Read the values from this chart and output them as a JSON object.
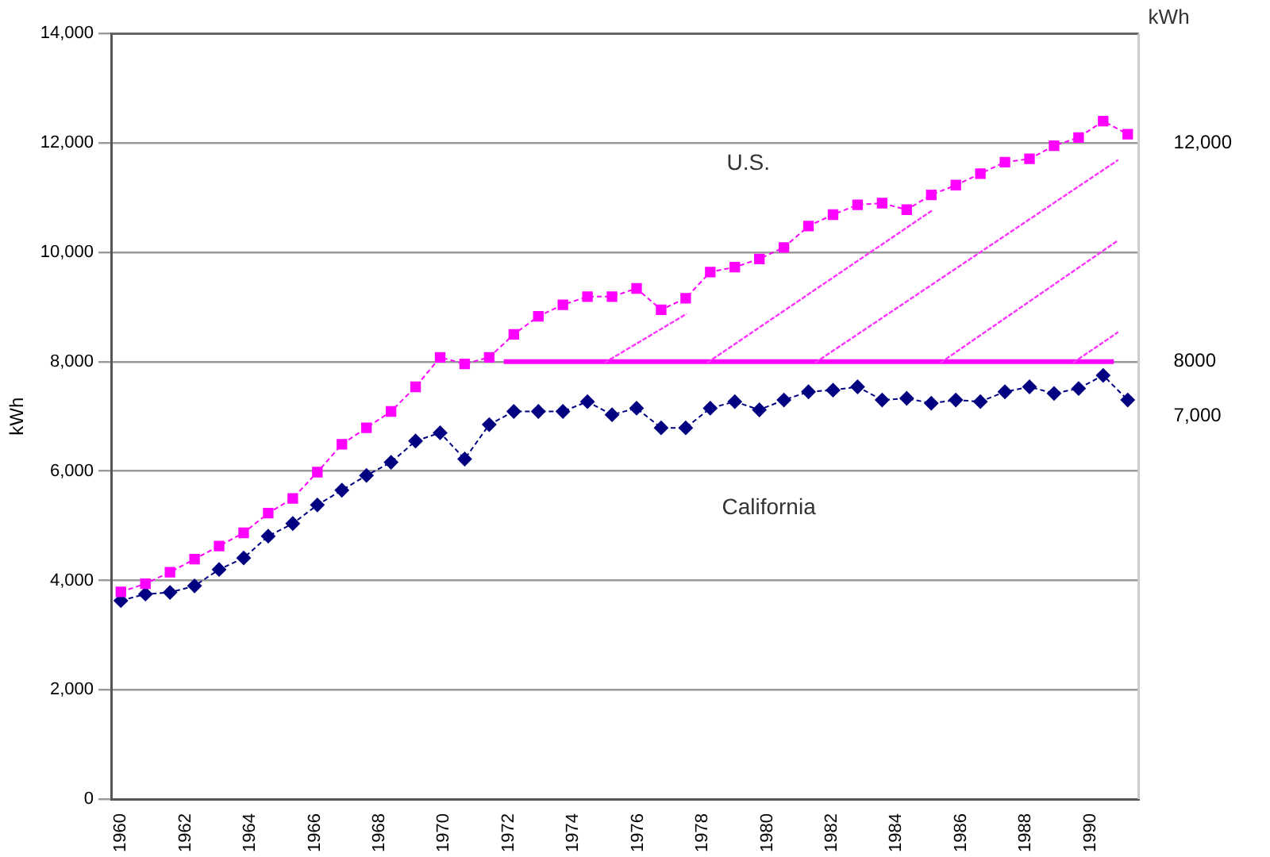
{
  "chart_data": {
    "type": "line",
    "ylabel": "kWh",
    "y2label": "kWh",
    "x": [
      1960,
      1960.76,
      1961.52,
      1962.28,
      1963.04,
      1963.8,
      1964.56,
      1965.32,
      1966.08,
      1966.84,
      1967.6,
      1968.36,
      1969.12,
      1969.88,
      1970.64,
      1971.4,
      1972.16,
      1972.92,
      1973.68,
      1974.44,
      1975.2,
      1975.96,
      1976.72,
      1977.48,
      1978.24,
      1979,
      1979.76,
      1980.52,
      1981.28,
      1982.04,
      1982.8,
      1983.56,
      1984.32,
      1985.08,
      1985.84,
      1986.6,
      1987.36,
      1988.12,
      1988.88,
      1989.64,
      1990.4,
      1991.16
    ],
    "series": [
      {
        "color": "#ff00ff",
        "marker": "square",
        "line_style": "dashed",
        "values": [
          3790,
          3940,
          4150,
          4390,
          4630,
          4870,
          5230,
          5500,
          5980,
          6490,
          6790,
          7090,
          7540,
          8080,
          7960,
          8080,
          8500,
          8830,
          9040,
          9190,
          9190,
          9340,
          8950,
          9160,
          9640,
          9730,
          9880,
          10090,
          10480,
          10690,
          10870,
          10900,
          10780,
          11050,
          11230,
          11440,
          11650,
          11710,
          11950,
          12100,
          12400,
          12160
        ]
      },
      {
        "color": "#000080",
        "marker": "diamond",
        "line_style": "dashed",
        "values": [
          3630,
          3750,
          3780,
          3900,
          4200,
          4410,
          4810,
          5040,
          5380,
          5650,
          5920,
          6160,
          6550,
          6700,
          6220,
          6850,
          7090,
          7090,
          7090,
          7270,
          7030,
          7150,
          6790,
          6790,
          7150,
          7270,
          7120,
          7300,
          7450,
          7480,
          7540,
          7300,
          7330,
          7240,
          7300,
          7270,
          7450,
          7540,
          7420,
          7510,
          7750,
          7300
        ]
      },
      {
        "type": "line",
        "color": "#ff00ff",
        "marker": "none",
        "line_style": "solid",
        "x": [
          1971.85,
          1990.73
        ],
        "values": [
          8000,
          8000
        ]
      }
    ],
    "xlim": [
      1959.7,
      1991.5
    ],
    "xticks": [
      1960,
      1962,
      1964,
      1966,
      1968,
      1970,
      1972,
      1974,
      1976,
      1978,
      1980,
      1982,
      1984,
      1986,
      1988,
      1990
    ],
    "ylim": [
      0,
      14000
    ],
    "yticks": [
      0,
      {
        "value": 2000,
        "label": "2,000"
      },
      {
        "value": 4000,
        "label": "4,000"
      },
      {
        "value": 6000,
        "label": "6,000"
      },
      {
        "value": 8000,
        "label": "8,000"
      },
      {
        "value": 10000,
        "label": "10,000"
      },
      {
        "value": 12000,
        "label": "12,000"
      },
      {
        "value": 14000,
        "label": "14,000"
      }
    ],
    "y2lim": [
      0,
      14000
    ],
    "y2ticks": [
      {
        "value": 7000,
        "label": "7,000"
      },
      {
        "value": 8000,
        "label": "8000"
      },
      {
        "value": 12000,
        "label": "12,000"
      }
    ],
    "grid": "y",
    "legend": false,
    "annotations": [
      "U.S.",
      "California"
    ]
  }
}
